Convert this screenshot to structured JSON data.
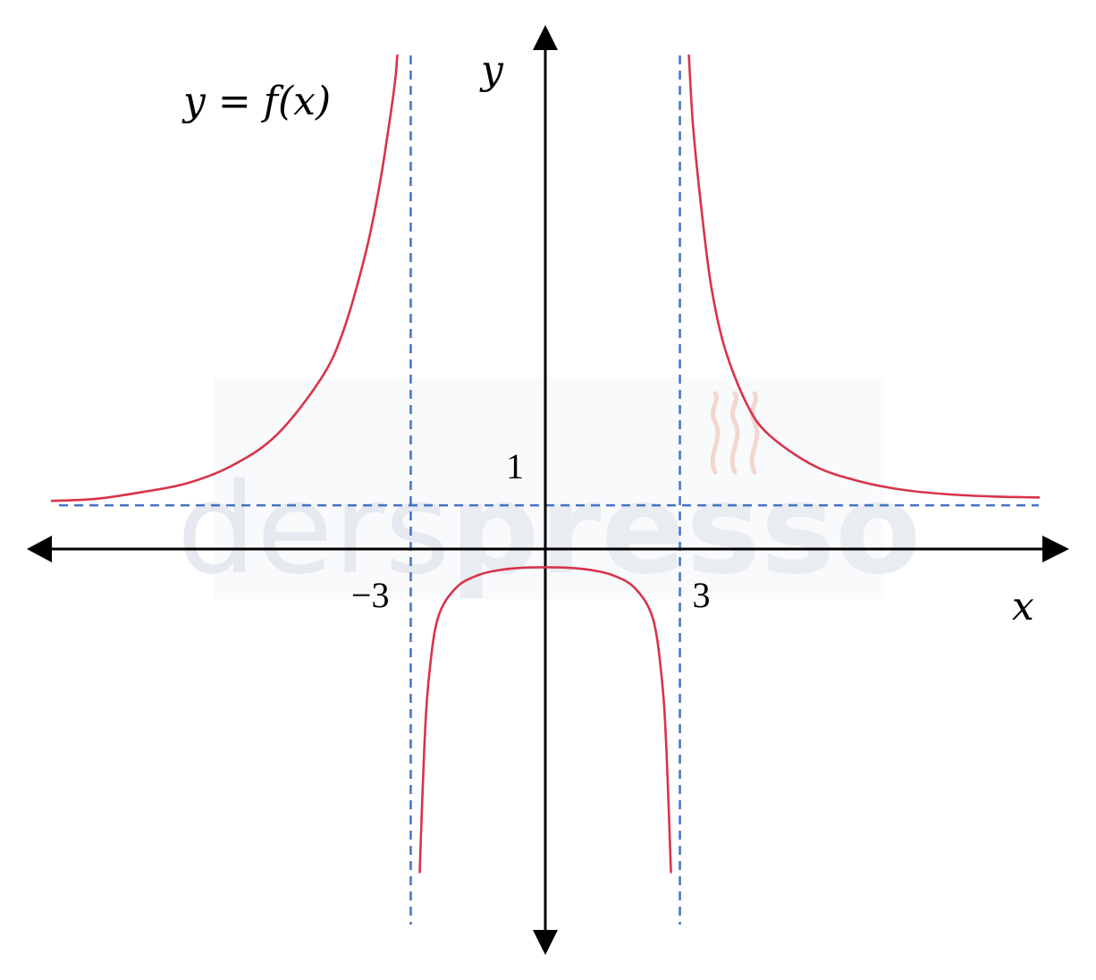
{
  "function_label": "y = f(x)",
  "watermark": {
    "text_light": "ders",
    "text_bold": "presso",
    "color_light": "#e6e9ef",
    "color_bold": "#e9ecf1",
    "accent": "#f3d6cf"
  },
  "colors": {
    "curve": "#d9334a",
    "asymptote": "#4472c4",
    "axis": "#000000"
  },
  "chart_data": {
    "type": "line",
    "title": "y = f(x)",
    "xlabel": "x",
    "ylabel": "y",
    "xlim": [
      -11,
      11
    ],
    "ylim": [
      -8.6,
      11.3
    ],
    "grid": false,
    "x_ticks": [
      {
        "value": -3,
        "label": "−3"
      },
      {
        "value": 3,
        "label": "3"
      }
    ],
    "y_ticks": [
      {
        "value": 1,
        "label": "1"
      }
    ],
    "asymptotes": {
      "vertical": [
        -3,
        3
      ],
      "horizontal": [
        1
      ]
    },
    "series": [
      {
        "x": [
          -11,
          -10,
          -9,
          -8,
          -7,
          -6,
          -5,
          -4.5,
          -4,
          -3.7,
          -3.5,
          -3.35,
          -3.3
        ],
        "y": [
          1.1,
          1.15,
          1.3,
          1.5,
          1.9,
          2.6,
          3.9,
          5.0,
          6.8,
          8.3,
          9.6,
          10.7,
          11.3
        ]
      },
      {
        "x": [
          -2.8,
          -2.7,
          -2.6,
          -2.4,
          -2.0,
          -1.5,
          -1.0,
          -0.5,
          0,
          0.5,
          1.0,
          1.5,
          2.0,
          2.4,
          2.6,
          2.7,
          2.8
        ],
        "y": [
          -7.4,
          -4.6,
          -3.0,
          -1.6,
          -0.9,
          -0.6,
          -0.48,
          -0.43,
          -0.42,
          -0.43,
          -0.48,
          -0.6,
          -0.9,
          -1.6,
          -3.0,
          -4.6,
          -7.4
        ]
      },
      {
        "x": [
          3.2,
          3.3,
          3.5,
          3.7,
          4,
          4.5,
          5,
          6,
          7,
          8,
          9,
          10,
          11
        ],
        "y": [
          11.3,
          9.6,
          7.6,
          6.0,
          4.6,
          3.3,
          2.6,
          1.9,
          1.55,
          1.35,
          1.25,
          1.2,
          1.18
        ]
      }
    ]
  }
}
